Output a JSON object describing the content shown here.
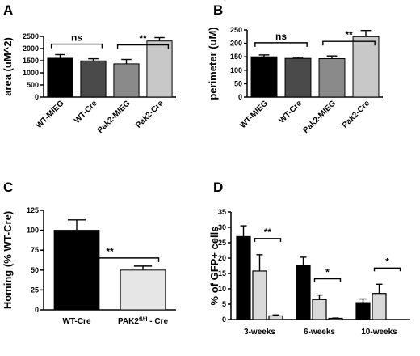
{
  "chart_data": [
    {
      "panel_label": "A",
      "type": "bar",
      "categories": [
        "WT-MIEG",
        "WT-Cre",
        "Pak2-MIEG",
        "Pak2-Cre"
      ],
      "values": [
        1600,
        1490,
        1370,
        2310
      ],
      "errors": [
        150,
        90,
        180,
        140
      ],
      "colors": [
        "#000000",
        "#4a4a4a",
        "#8a8a8a",
        "#c8c8c8"
      ],
      "ylabel": "area (uM^2)",
      "ylim": [
        0,
        2500
      ],
      "yticks": [
        "0",
        "500",
        "1000",
        "1500",
        "2000",
        "2500"
      ],
      "significance": [
        {
          "between": [
            0,
            1
          ],
          "label": "ns"
        },
        {
          "between": [
            2,
            3
          ],
          "label": "**"
        }
      ]
    },
    {
      "panel_label": "B",
      "type": "bar",
      "categories": [
        "WT-MIEG",
        "WT-Cre",
        "Pak2-MIEG",
        "Pak2-Cre"
      ],
      "values": [
        150,
        144,
        143,
        225
      ],
      "errors": [
        7,
        4,
        10,
        23
      ],
      "colors": [
        "#000000",
        "#4a4a4a",
        "#8a8a8a",
        "#c8c8c8"
      ],
      "ylabel": "perimeter (uM)",
      "ylim": [
        0,
        250
      ],
      "yticks": [
        "0",
        "50",
        "100",
        "150",
        "200",
        "250"
      ],
      "significance": [
        {
          "between": [
            0,
            1
          ],
          "label": "ns"
        },
        {
          "between": [
            2,
            3
          ],
          "label": "**"
        }
      ]
    },
    {
      "panel_label": "C",
      "type": "bar",
      "categories": [
        "WT-Cre",
        "PAK2fl/fl - Cre"
      ],
      "values": [
        100,
        50
      ],
      "errors": [
        13,
        5
      ],
      "colors": [
        "#000000",
        "#e6e6e6"
      ],
      "ylabel": "Homing (% WT-Cre)",
      "ylim": [
        0,
        125
      ],
      "yticks": [
        "0",
        "25",
        "50",
        "75",
        "100",
        "125"
      ],
      "significance": [
        {
          "between": [
            0,
            1
          ],
          "label": "**"
        }
      ]
    },
    {
      "panel_label": "D",
      "type": "bar",
      "categories": [
        "3-weeks",
        "6-weeks",
        "10-weeks"
      ],
      "series": [
        {
          "values": [
            27,
            17.5,
            5.5
          ],
          "errors": [
            3.5,
            2.8,
            1.2
          ],
          "color": "#000000"
        },
        {
          "values": [
            15.8,
            6.5,
            8.5
          ],
          "errors": [
            5.3,
            1.5,
            3
          ],
          "color": "#d9d9d9"
        },
        {
          "values": [
            1.2,
            0.4,
            0
          ],
          "errors": [
            0.3,
            0.1,
            0
          ],
          "color": "#d9d9d9"
        }
      ],
      "ylabel": "% of GFP+ cells",
      "ylim": [
        0,
        35
      ],
      "yticks": [
        "0",
        "5",
        "10",
        "15",
        "20",
        "25",
        "30",
        "35"
      ],
      "significance": [
        {
          "group": 0,
          "label": "**"
        },
        {
          "group": 1,
          "label": "*"
        },
        {
          "group": 2,
          "label": "*"
        }
      ]
    }
  ]
}
